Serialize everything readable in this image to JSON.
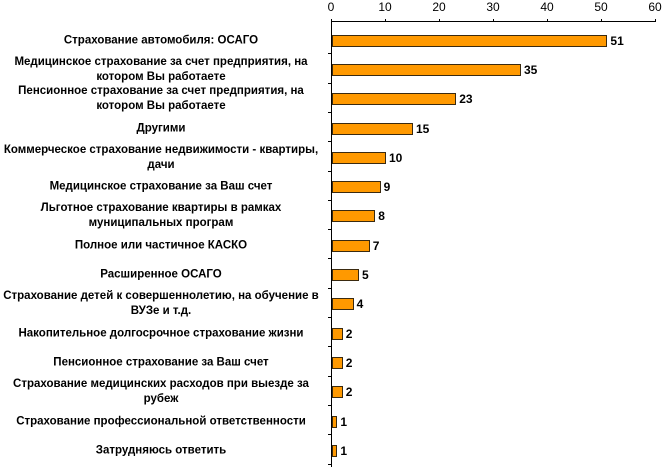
{
  "chart_data": {
    "type": "bar",
    "orientation": "horizontal",
    "title": "",
    "xlabel": "",
    "ylabel": "",
    "xlim": [
      0,
      60
    ],
    "x_ticks": [
      0,
      10,
      20,
      30,
      40,
      50,
      60
    ],
    "x_axis_position": "top",
    "grid": false,
    "legend": null,
    "bar_color": "#ff9900",
    "bar_border_color": "#3a2a10",
    "categories": [
      "Страхование автомобиля: ОСАГО",
      "Медицинское страхование за счет предприятия, на котором Вы работаете",
      "Пенсионное страхование за счет предприятия, на котором Вы работаете",
      "Другими",
      "Коммерческое страхование недвижимости - квартиры, дачи",
      "Медицинское страхование за Ваш счет",
      "Льготное страхование квартиры в рамках муниципальных програм",
      "Полное или частичное КАСКО",
      "Расширенное ОСАГО",
      "Страхование детей к совершеннолетию, на обучение в ВУЗе и т.д.",
      "Накопительное долгосрочное страхование жизни",
      "Пенсионное страхование за Ваш счет",
      "Страхование медицинских расходов при выезде за рубеж",
      "Страхование профессиональной ответственности",
      "Затрудняюсь ответить"
    ],
    "values": [
      51,
      35,
      23,
      15,
      10,
      9,
      8,
      7,
      5,
      4,
      2,
      2,
      2,
      1,
      1
    ],
    "value_labels": [
      "51",
      "35",
      "23",
      "15",
      "10",
      "9",
      "8",
      "7",
      "5",
      "4",
      "2",
      "2",
      "2",
      "1",
      "1"
    ]
  }
}
